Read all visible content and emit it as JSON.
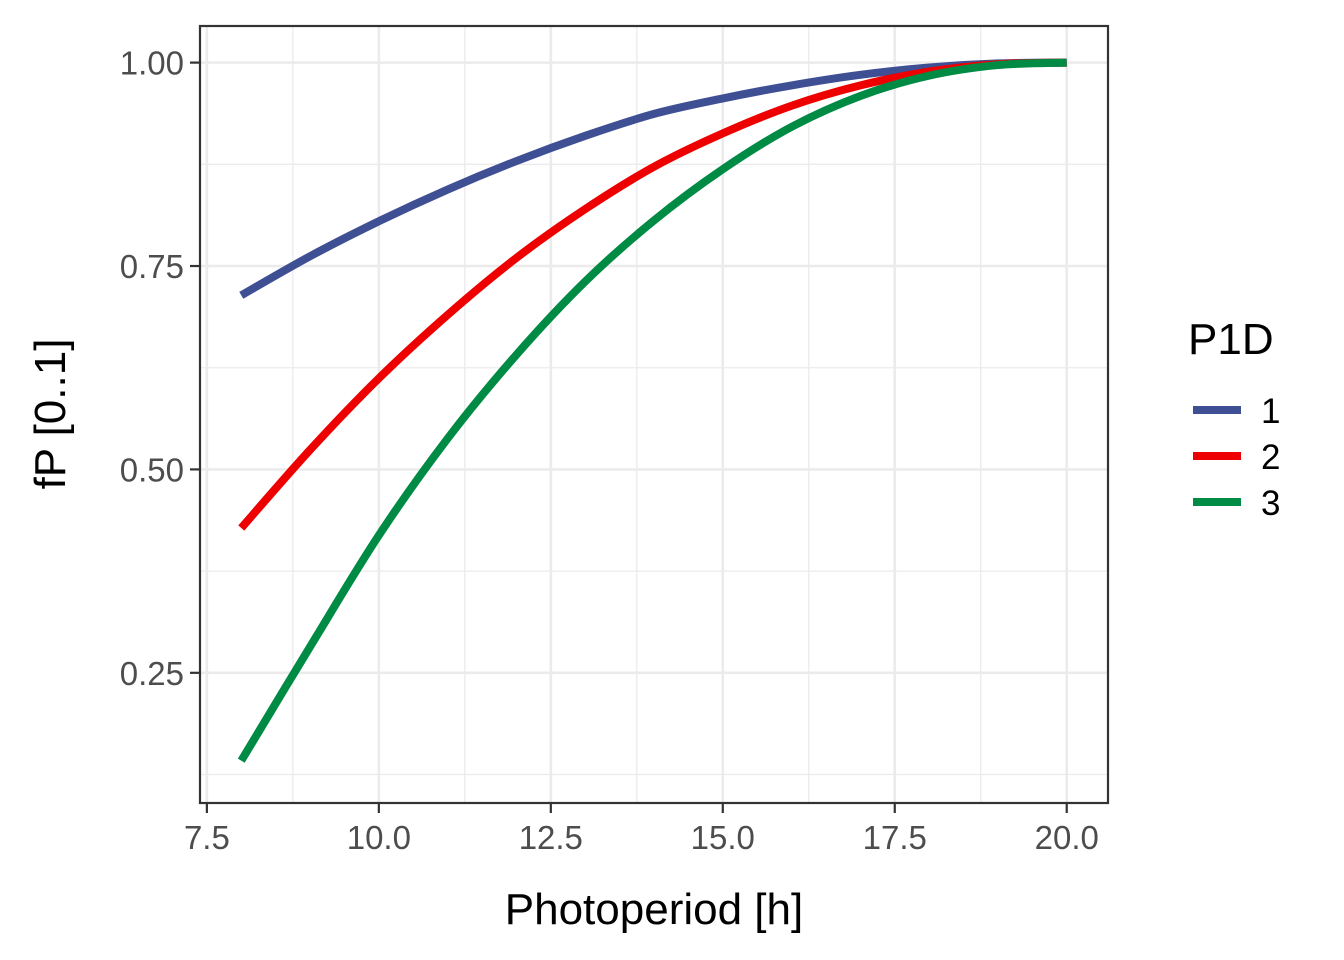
{
  "chart_data": {
    "type": "line",
    "title": "",
    "xlabel": "Photoperiod [h]",
    "ylabel": "fP [0..1]",
    "xlim": [
      7.4,
      20.6
    ],
    "ylim": [
      0.09,
      1.045
    ],
    "x_ticks": [
      "7.5",
      "10.0",
      "12.5",
      "15.0",
      "17.5",
      "20.0"
    ],
    "x_tick_values": [
      7.5,
      10.0,
      12.5,
      15.0,
      17.5,
      20.0
    ],
    "y_ticks": [
      "0.25",
      "0.50",
      "0.75",
      "1.00"
    ],
    "y_tick_values": [
      0.25,
      0.5,
      0.75,
      1.0
    ],
    "grid": true,
    "legend": {
      "title": "P1D",
      "position": "right",
      "entries": [
        "1",
        "2",
        "3"
      ]
    },
    "x": [
      8,
      9,
      10,
      11,
      12,
      13,
      14,
      15,
      16,
      17,
      18,
      19,
      20
    ],
    "series": [
      {
        "name": "1",
        "color": "#3f4f94",
        "values": [
          0.714,
          0.762,
          0.805,
          0.844,
          0.879,
          0.91,
          0.937,
          0.956,
          0.972,
          0.985,
          0.994,
          0.999,
          1.0
        ]
      },
      {
        "name": "2",
        "color": "#ee0000",
        "values": [
          0.428,
          0.524,
          0.612,
          0.69,
          0.76,
          0.82,
          0.872,
          0.913,
          0.947,
          0.972,
          0.989,
          0.998,
          1.0
        ]
      },
      {
        "name": "3",
        "color": "#008b45",
        "values": [
          0.142,
          0.282,
          0.419,
          0.538,
          0.641,
          0.731,
          0.806,
          0.869,
          0.921,
          0.959,
          0.984,
          0.997,
          1.0
        ]
      }
    ]
  }
}
